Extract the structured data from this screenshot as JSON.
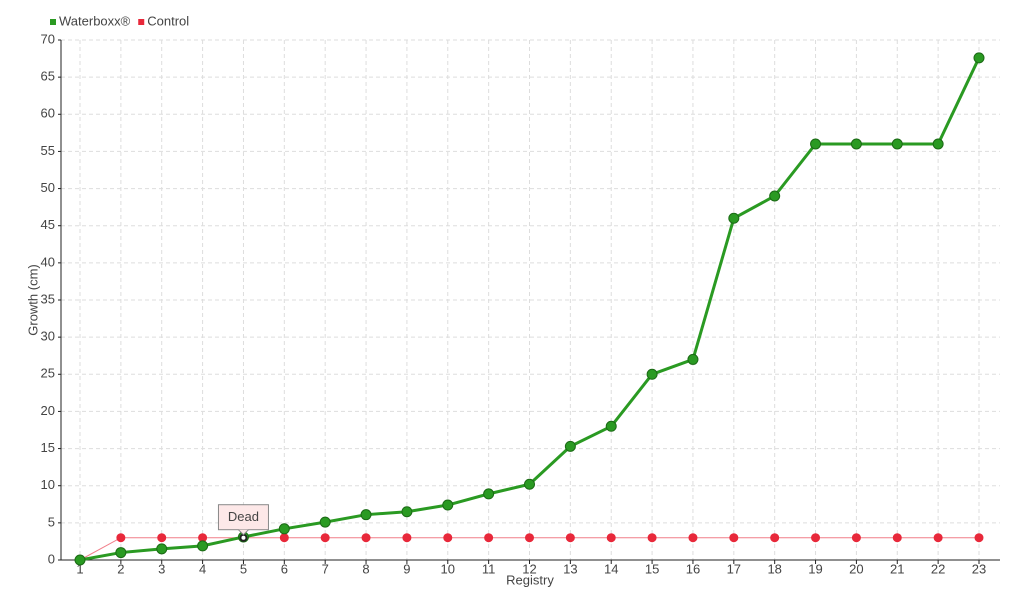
{
  "chart_data": {
    "type": "line",
    "x_label": "Registry",
    "y_label": "Growth (cm)",
    "categories": [
      "1",
      "2",
      "3",
      "4",
      "5",
      "6",
      "7",
      "8",
      "9",
      "10",
      "11",
      "12",
      "13",
      "14",
      "15",
      "16",
      "17",
      "18",
      "19",
      "20",
      "21",
      "22",
      "23"
    ],
    "series": [
      {
        "name": "Waterboxx®",
        "color": "#2a9a22",
        "values": [
          0,
          1,
          1.5,
          1.9,
          3.1,
          4.2,
          5.1,
          6.1,
          6.5,
          7.4,
          8.9,
          10.2,
          15.3,
          18,
          25,
          27,
          46,
          49,
          56,
          56,
          56,
          56,
          67.6
        ]
      },
      {
        "name": "Control",
        "color": "#e8283a",
        "values": [
          0,
          3,
          3,
          3,
          3,
          3,
          3,
          3,
          3,
          3,
          3,
          3,
          3,
          3,
          3,
          3,
          3,
          3,
          3,
          3,
          3,
          3,
          3
        ]
      }
    ],
    "annotations": [
      {
        "text": "Dead",
        "category": "5"
      }
    ],
    "ylim": [
      0,
      70
    ],
    "yticks": [
      0,
      5,
      10,
      15,
      20,
      25,
      30,
      35,
      40,
      45,
      50,
      55,
      60,
      65,
      70
    ],
    "grid": true,
    "legend": "top-left"
  }
}
